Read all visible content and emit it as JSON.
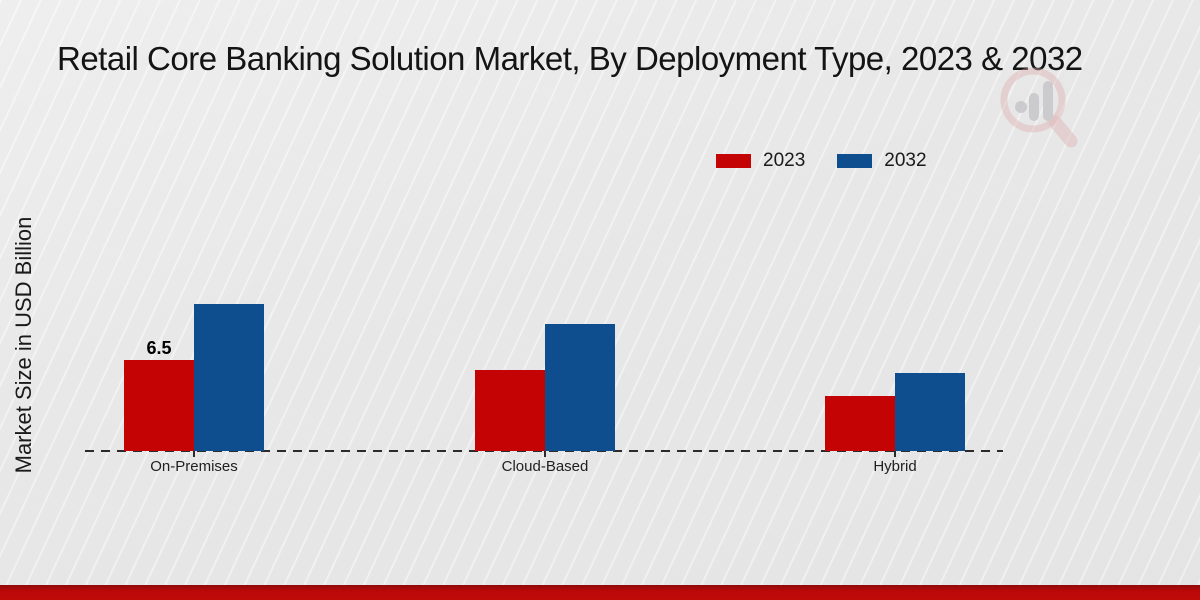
{
  "title": "Retail Core Banking Solution Market, By Deployment Type, 2023 & 2032",
  "ylabel": "Market Size in USD Billion",
  "legend": [
    {
      "label": "2023",
      "color": "#c40404"
    },
    {
      "label": "2032",
      "color": "#0e4d8e"
    }
  ],
  "colors": {
    "bar_2023": "#c40404",
    "bar_2032": "#0e4d8e",
    "footer_band": "#bb0808",
    "watermark_red": "#ddadad",
    "watermark_gray": "#c2c2c6"
  },
  "chart_data": {
    "type": "bar",
    "categories": [
      "On-Premises",
      "Cloud-Based",
      "Hybrid"
    ],
    "series": [
      {
        "name": "2023",
        "color": "#c40404",
        "values": [
          6.5,
          5.8,
          3.9
        ]
      },
      {
        "name": "2032",
        "color": "#0e4d8e",
        "values": [
          10.5,
          9.1,
          5.6
        ]
      }
    ],
    "data_labels": [
      {
        "category_index": 0,
        "series_index": 0,
        "text": "6.5"
      }
    ],
    "title": "Retail Core Banking Solution Market, By Deployment Type, 2023 & 2032",
    "xlabel": "",
    "ylabel": "Market Size in USD Billion",
    "ylim": [
      0,
      11
    ],
    "grid": false,
    "legend_position": "top-right",
    "axis_style": "dashed-baseline-only"
  }
}
